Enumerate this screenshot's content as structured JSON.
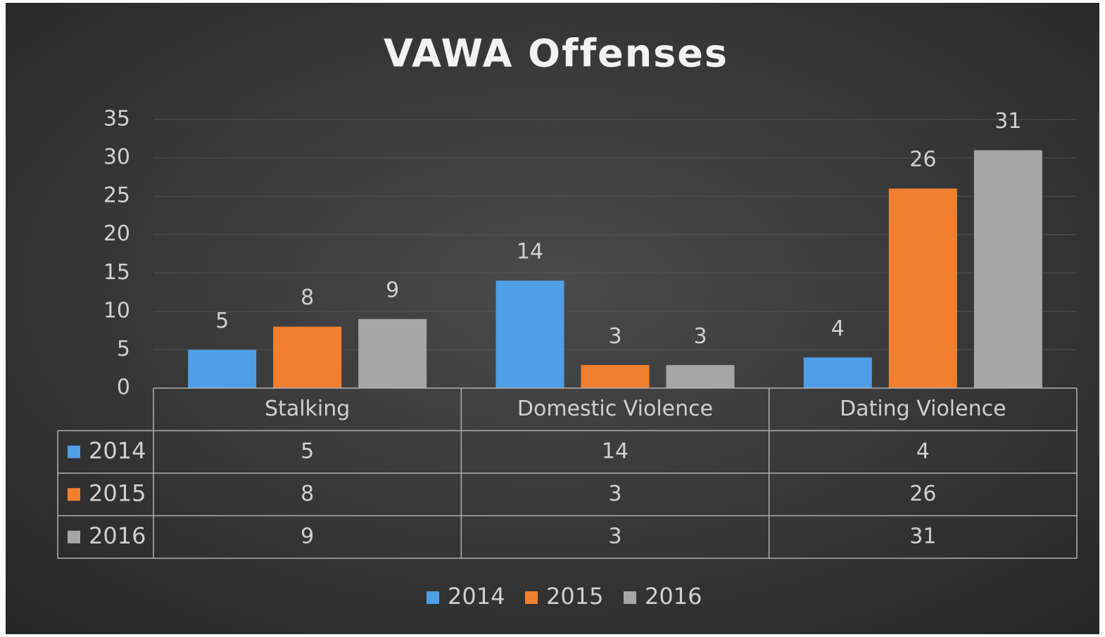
{
  "chart_data": {
    "type": "bar",
    "title": "VAWA Offenses",
    "categories": [
      "Stalking",
      "Domestic Violence",
      "Dating Violence"
    ],
    "series": [
      {
        "name": "2014",
        "color": "#4f9fe6",
        "values": [
          5,
          14,
          4
        ]
      },
      {
        "name": "2015",
        "color": "#f08030",
        "values": [
          8,
          3,
          26
        ]
      },
      {
        "name": "2016",
        "color": "#a6a6a6",
        "values": [
          9,
          3,
          31
        ]
      }
    ],
    "ylim": [
      0,
      35
    ],
    "yticks": [
      0,
      5,
      10,
      15,
      20,
      25,
      30,
      35
    ],
    "grid": true,
    "legend": "bottom",
    "data_table": true
  }
}
